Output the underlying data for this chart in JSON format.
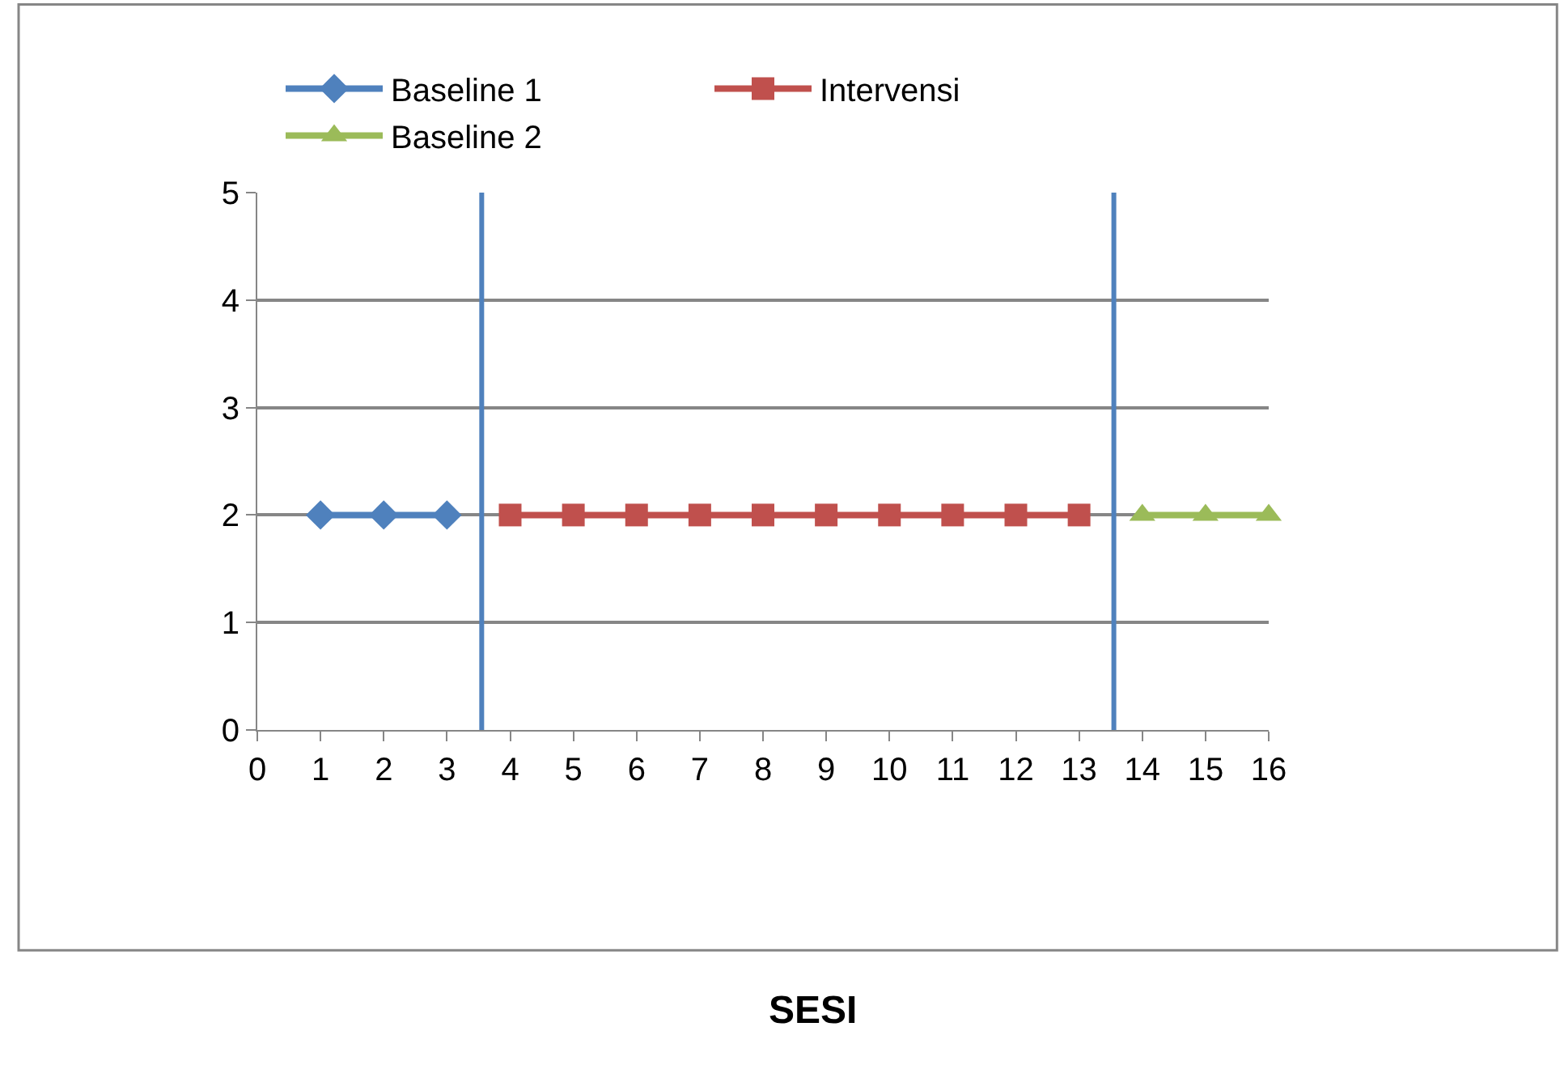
{
  "chart_data": {
    "type": "line",
    "annotations": [
      "SESI"
    ],
    "series": [
      {
        "name": "Baseline 1",
        "color": "#4f81bd",
        "marker": "diamond",
        "x": [
          1,
          2,
          3
        ],
        "values": [
          2,
          2,
          2
        ]
      },
      {
        "name": "Intervensi",
        "color": "#c0504d",
        "marker": "square",
        "x": [
          4,
          5,
          6,
          7,
          8,
          9,
          10,
          11,
          12,
          13
        ],
        "values": [
          2,
          2,
          2,
          2,
          2,
          2,
          2,
          2,
          2,
          2
        ]
      },
      {
        "name": "Baseline 2",
        "color": "#9bbb59",
        "marker": "triangle",
        "x": [
          14,
          15,
          16
        ],
        "values": [
          2,
          2,
          2
        ]
      }
    ],
    "xlim": [
      0,
      16
    ],
    "xticks": [
      0,
      1,
      2,
      3,
      4,
      5,
      6,
      7,
      8,
      9,
      10,
      11,
      12,
      13,
      14,
      15,
      16
    ],
    "ylim": [
      0,
      5
    ],
    "yticks": [
      0,
      1,
      2,
      3,
      4,
      5
    ],
    "ref_lines": [
      {
        "axis": "x",
        "value": 3.55,
        "color": "#4f81bd"
      },
      {
        "axis": "x",
        "value": 13.55,
        "color": "#4f81bd"
      }
    ],
    "grid": "y",
    "legend": "top"
  }
}
